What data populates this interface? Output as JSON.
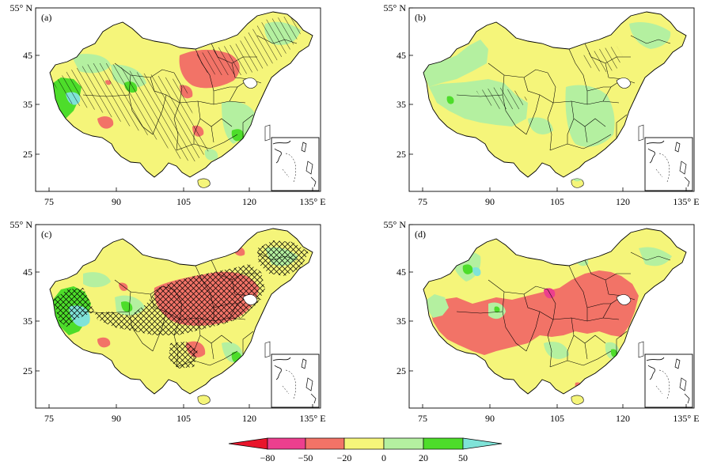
{
  "figure": {
    "panels": [
      {
        "label": "(a)",
        "hatch": "single",
        "x_ticks": [
          "75",
          "90",
          "105",
          "120",
          "135° E"
        ],
        "y_ticks": [
          "55° N",
          "45",
          "35",
          "25"
        ]
      },
      {
        "label": "(b)",
        "hatch": "single",
        "x_ticks": [
          "75",
          "90",
          "105",
          "120",
          "135° E"
        ],
        "y_ticks": [
          "55° N",
          "45",
          "35",
          "25"
        ]
      },
      {
        "label": "(c)",
        "hatch": "cross",
        "x_ticks": [
          "75",
          "90",
          "105",
          "120",
          "135° E"
        ],
        "y_ticks": [
          "55° N",
          "45",
          "35",
          "25"
        ]
      },
      {
        "label": "(d)",
        "hatch": "none",
        "x_ticks": [
          "75",
          "90",
          "105",
          "120",
          "135° E"
        ],
        "y_ticks": [
          "55° N",
          "45",
          "35",
          "25"
        ]
      }
    ],
    "colorbar": {
      "tick_labels": [
        "−80",
        "−50",
        "−20",
        "0",
        "20",
        "50"
      ],
      "colors": [
        "#e8152b",
        "#ec3f8e",
        "#f27367",
        "#f5f57a",
        "#b4f0a0",
        "#4ddd2a",
        "#7fe3d8"
      ]
    },
    "palette": {
      "yellow": "#f5f57a",
      "light_green": "#b4f0a0",
      "green": "#4ddd2a",
      "cyan": "#7fe3d8",
      "salmon": "#f27367",
      "pink": "#ec3f8e",
      "red": "#e8152b",
      "frame": "#000000"
    }
  }
}
